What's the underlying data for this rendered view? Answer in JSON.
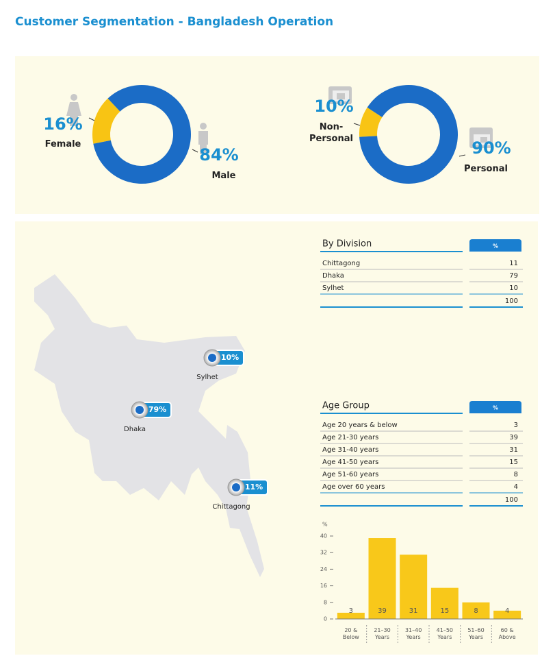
{
  "title": "Customer Segmentation - Bangladesh Operation",
  "chart_data": [
    {
      "type": "pie",
      "categories": [
        "Female",
        "Male"
      ],
      "values": [
        16,
        84
      ],
      "value_labels": [
        "16%",
        "84%"
      ],
      "colors": [
        "#f8c414",
        "#1b6cc6"
      ]
    },
    {
      "type": "pie",
      "categories": [
        "Non-Personal",
        "Personal"
      ],
      "values": [
        10,
        90
      ],
      "value_labels": [
        "10%",
        "90%"
      ],
      "colors": [
        "#f8c414",
        "#1b6cc6"
      ]
    },
    {
      "type": "bar",
      "y_label": "%",
      "categories": [
        "20 & Below",
        "21–30 Years",
        "31–40 Years",
        "41–50 Years",
        "51–60 Years",
        "60 & Above"
      ],
      "values": [
        3,
        39,
        31,
        15,
        8,
        4
      ],
      "color": "#f8c81a",
      "ylim": [
        0,
        40
      ],
      "yticks": [
        0,
        8,
        16,
        24,
        32,
        40
      ]
    }
  ],
  "division_table": {
    "title": "By Division",
    "column": "%",
    "rows": [
      [
        "Chittagong",
        11
      ],
      [
        "Dhaka",
        79
      ],
      [
        "Sylhet",
        10
      ]
    ],
    "total": 100
  },
  "age_table": {
    "title": "Age Group",
    "column": "%",
    "rows": [
      [
        "Age 20 years & below",
        3
      ],
      [
        "Age 21-30 years",
        39
      ],
      [
        "Age 31-40 years",
        31
      ],
      [
        "Age 41-50 years",
        15
      ],
      [
        "Age 51-60 years",
        8
      ],
      [
        "Age over 60 years",
        4
      ]
    ],
    "total": 100
  },
  "map": {
    "pins": [
      {
        "name": "Sylhet",
        "label": "10%"
      },
      {
        "name": "Dhaka",
        "label": "79%"
      },
      {
        "name": "Chittagong",
        "label": "11%"
      }
    ]
  }
}
